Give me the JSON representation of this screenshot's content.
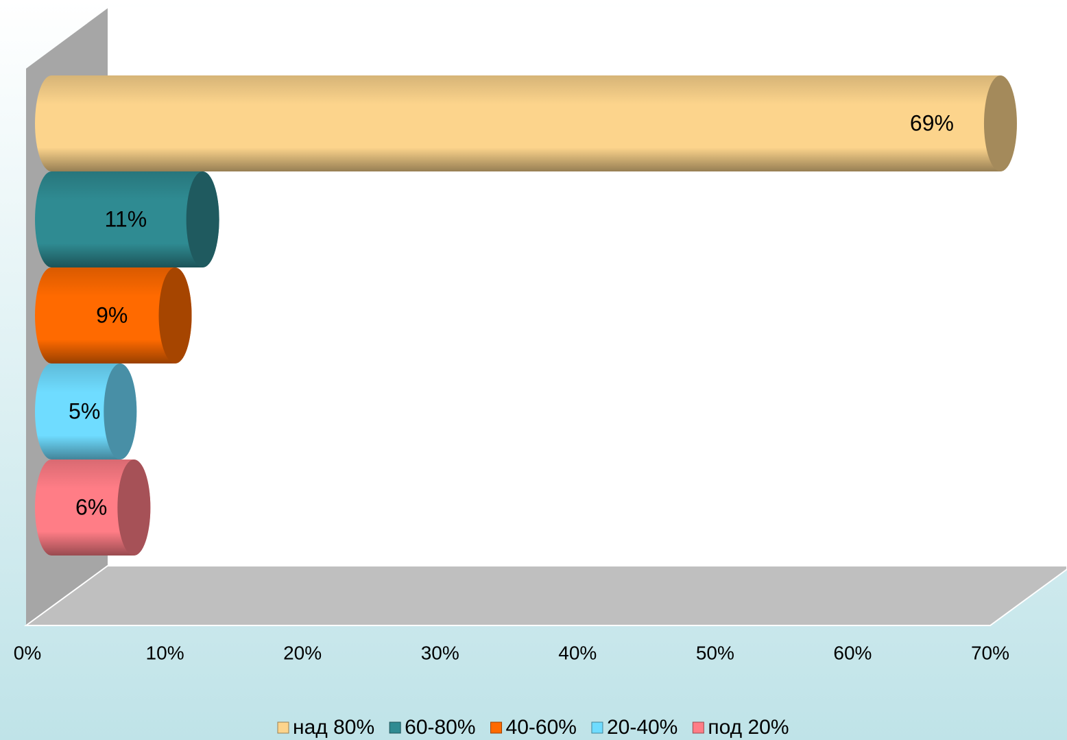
{
  "chart_data": {
    "type": "bar",
    "orientation": "horizontal",
    "three_d": true,
    "categories": [
      null
    ],
    "series": [
      {
        "name": "над 80%",
        "color": "#fcd48c",
        "values": [
          69
        ],
        "value_labels": [
          "69%"
        ]
      },
      {
        "name": "60-80%",
        "color": "#2f8b92",
        "values": [
          11
        ],
        "value_labels": [
          "11%"
        ]
      },
      {
        "name": "40-60%",
        "color": "#ff6a00",
        "values": [
          9
        ],
        "value_labels": [
          "9%"
        ]
      },
      {
        "name": "20-40%",
        "color": "#6fdcff",
        "values": [
          5
        ],
        "value_labels": [
          "5%"
        ]
      },
      {
        "name": "под 20%",
        "color": "#ff7d86",
        "values": [
          6
        ],
        "value_labels": [
          "6%"
        ]
      }
    ],
    "xlim": [
      0,
      70
    ],
    "xticks": [
      {
        "value": 0,
        "label": "0%"
      },
      {
        "value": 10,
        "label": "10%"
      },
      {
        "value": 20,
        "label": "20%"
      },
      {
        "value": 30,
        "label": "30%"
      },
      {
        "value": 40,
        "label": "40%"
      },
      {
        "value": 50,
        "label": "50%"
      },
      {
        "value": 60,
        "label": "60%"
      },
      {
        "value": 70,
        "label": "70%"
      }
    ],
    "legend": "bottom"
  }
}
